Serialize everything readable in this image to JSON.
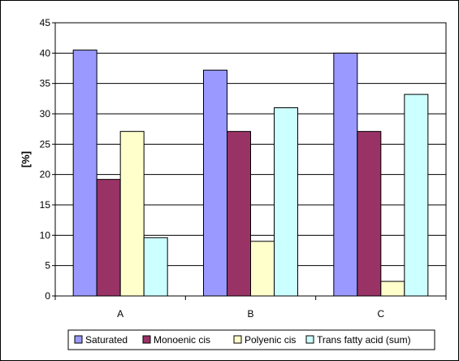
{
  "chart_data": {
    "type": "bar",
    "title": "",
    "xlabel": "",
    "ylabel": "[%]",
    "ylim": [
      0,
      45
    ],
    "yticks": [
      0,
      5,
      10,
      15,
      20,
      25,
      30,
      35,
      40,
      45
    ],
    "grid": true,
    "legend_position": "bottom",
    "categories": [
      "A",
      "B",
      "C"
    ],
    "series": [
      {
        "name": "Saturated",
        "values": [
          40.5,
          37.2,
          40.0
        ],
        "color": "#9999ff"
      },
      {
        "name": "Monoenic cis",
        "values": [
          19.2,
          27.1,
          27.1
        ],
        "color": "#993366"
      },
      {
        "name": "Polyenic cis",
        "values": [
          27.1,
          9.0,
          2.4
        ],
        "color": "#ffffcc"
      },
      {
        "name": "Trans fatty acid (sum)",
        "values": [
          9.6,
          31.0,
          33.2
        ],
        "color": "#ccffff"
      }
    ]
  }
}
